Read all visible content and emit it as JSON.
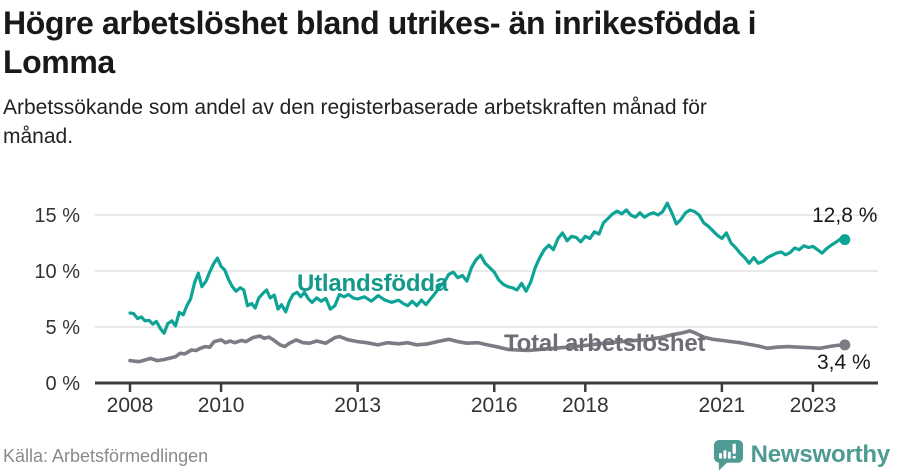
{
  "header": {
    "title_lines": [
      "Högre arbetslöshet bland utrikes- än inrikesfödda i",
      "Lomma"
    ],
    "subtitle_lines": [
      "Arbetssökande som andel av den registerbaserade arbetskraften månad för",
      "månad."
    ]
  },
  "chart_data": {
    "type": "line",
    "x_unit": "year_decimal",
    "xlim": [
      2007.75,
      2024.1
    ],
    "ylim": [
      0,
      16.5
    ],
    "grid": "horizontal",
    "yticks": [
      0,
      5,
      10,
      15
    ],
    "ytick_labels": [
      "0 %",
      "5 %",
      "10 %",
      "15 %"
    ],
    "xticks": [
      2008,
      2010,
      2013,
      2016,
      2018,
      2021,
      2023
    ],
    "xtick_labels": [
      "2008",
      "2010",
      "2013",
      "2016",
      "2018",
      "2021",
      "2023"
    ],
    "series": [
      {
        "name": "Utlandsfödda",
        "color": "#0da495",
        "label_color": "#12998c",
        "end_label": "12,8 %",
        "end_value": 12.8,
        "points": [
          [
            2008.0,
            6.25
          ],
          [
            2008.08,
            6.2
          ],
          [
            2008.17,
            5.75
          ],
          [
            2008.25,
            5.9
          ],
          [
            2008.33,
            5.55
          ],
          [
            2008.42,
            5.6
          ],
          [
            2008.5,
            5.25
          ],
          [
            2008.58,
            5.5
          ],
          [
            2008.67,
            4.85
          ],
          [
            2008.75,
            4.45
          ],
          [
            2008.83,
            5.3
          ],
          [
            2008.92,
            5.55
          ],
          [
            2009.0,
            5.1
          ],
          [
            2009.08,
            6.3
          ],
          [
            2009.17,
            6.1
          ],
          [
            2009.25,
            6.9
          ],
          [
            2009.33,
            7.5
          ],
          [
            2009.42,
            9.0
          ],
          [
            2009.5,
            9.8
          ],
          [
            2009.58,
            8.6
          ],
          [
            2009.67,
            9.1
          ],
          [
            2009.75,
            9.9
          ],
          [
            2009.83,
            10.6
          ],
          [
            2009.92,
            11.15
          ],
          [
            2010.0,
            10.4
          ],
          [
            2010.08,
            10.1
          ],
          [
            2010.17,
            9.2
          ],
          [
            2010.25,
            8.6
          ],
          [
            2010.33,
            8.2
          ],
          [
            2010.42,
            8.5
          ],
          [
            2010.5,
            8.3
          ],
          [
            2010.58,
            6.9
          ],
          [
            2010.67,
            7.1
          ],
          [
            2010.75,
            6.7
          ],
          [
            2010.83,
            7.6
          ],
          [
            2010.92,
            8.0
          ],
          [
            2011.0,
            8.3
          ],
          [
            2011.08,
            7.6
          ],
          [
            2011.17,
            7.85
          ],
          [
            2011.25,
            6.6
          ],
          [
            2011.33,
            7.0
          ],
          [
            2011.42,
            6.35
          ],
          [
            2011.5,
            7.3
          ],
          [
            2011.58,
            7.9
          ],
          [
            2011.67,
            8.1
          ],
          [
            2011.75,
            7.7
          ],
          [
            2011.83,
            8.1
          ],
          [
            2011.92,
            7.5
          ],
          [
            2012.0,
            7.2
          ],
          [
            2012.1,
            7.6
          ],
          [
            2012.2,
            7.3
          ],
          [
            2012.3,
            7.55
          ],
          [
            2012.4,
            6.6
          ],
          [
            2012.5,
            6.9
          ],
          [
            2012.6,
            7.9
          ],
          [
            2012.7,
            7.7
          ],
          [
            2012.8,
            7.9
          ],
          [
            2012.9,
            7.6
          ],
          [
            2013.0,
            7.5
          ],
          [
            2013.15,
            7.7
          ],
          [
            2013.3,
            7.3
          ],
          [
            2013.45,
            7.8
          ],
          [
            2013.6,
            7.4
          ],
          [
            2013.75,
            7.2
          ],
          [
            2013.9,
            7.4
          ],
          [
            2014.0,
            7.1
          ],
          [
            2014.1,
            6.9
          ],
          [
            2014.2,
            7.3
          ],
          [
            2014.3,
            6.9
          ],
          [
            2014.4,
            7.4
          ],
          [
            2014.5,
            7.0
          ],
          [
            2014.6,
            7.5
          ],
          [
            2014.7,
            8.0
          ],
          [
            2014.8,
            8.6
          ],
          [
            2014.9,
            9.0
          ],
          [
            2015.0,
            9.7
          ],
          [
            2015.1,
            9.9
          ],
          [
            2015.2,
            9.4
          ],
          [
            2015.3,
            9.6
          ],
          [
            2015.4,
            9.1
          ],
          [
            2015.5,
            10.3
          ],
          [
            2015.6,
            11.0
          ],
          [
            2015.7,
            11.4
          ],
          [
            2015.8,
            10.7
          ],
          [
            2015.9,
            10.3
          ],
          [
            2016.0,
            9.9
          ],
          [
            2016.1,
            9.2
          ],
          [
            2016.2,
            8.8
          ],
          [
            2016.3,
            8.6
          ],
          [
            2016.4,
            8.5
          ],
          [
            2016.5,
            8.3
          ],
          [
            2016.6,
            8.9
          ],
          [
            2016.7,
            8.2
          ],
          [
            2016.8,
            9.0
          ],
          [
            2016.9,
            10.3
          ],
          [
            2017.0,
            11.2
          ],
          [
            2017.1,
            11.9
          ],
          [
            2017.2,
            12.3
          ],
          [
            2017.3,
            11.9
          ],
          [
            2017.4,
            12.9
          ],
          [
            2017.5,
            13.4
          ],
          [
            2017.6,
            12.7
          ],
          [
            2017.7,
            13.1
          ],
          [
            2017.8,
            13.0
          ],
          [
            2017.9,
            12.6
          ],
          [
            2018.0,
            13.1
          ],
          [
            2018.1,
            12.9
          ],
          [
            2018.2,
            13.5
          ],
          [
            2018.3,
            13.3
          ],
          [
            2018.4,
            14.3
          ],
          [
            2018.5,
            14.7
          ],
          [
            2018.6,
            15.1
          ],
          [
            2018.7,
            15.35
          ],
          [
            2018.8,
            15.1
          ],
          [
            2018.9,
            15.45
          ],
          [
            2019.0,
            15.0
          ],
          [
            2019.1,
            14.8
          ],
          [
            2019.2,
            15.2
          ],
          [
            2019.3,
            14.8
          ],
          [
            2019.4,
            15.05
          ],
          [
            2019.5,
            15.2
          ],
          [
            2019.6,
            15.0
          ],
          [
            2019.7,
            15.3
          ],
          [
            2019.8,
            16.05
          ],
          [
            2019.9,
            15.2
          ],
          [
            2020.0,
            14.2
          ],
          [
            2020.1,
            14.6
          ],
          [
            2020.2,
            15.2
          ],
          [
            2020.3,
            15.45
          ],
          [
            2020.4,
            15.3
          ],
          [
            2020.5,
            15.0
          ],
          [
            2020.6,
            14.3
          ],
          [
            2020.7,
            14.0
          ],
          [
            2020.8,
            13.6
          ],
          [
            2020.9,
            13.2
          ],
          [
            2021.0,
            12.9
          ],
          [
            2021.1,
            13.4
          ],
          [
            2021.2,
            12.5
          ],
          [
            2021.3,
            12.1
          ],
          [
            2021.4,
            11.6
          ],
          [
            2021.5,
            11.2
          ],
          [
            2021.6,
            10.7
          ],
          [
            2021.7,
            11.2
          ],
          [
            2021.8,
            10.7
          ],
          [
            2021.9,
            10.85
          ],
          [
            2022.0,
            11.2
          ],
          [
            2022.1,
            11.4
          ],
          [
            2022.2,
            11.6
          ],
          [
            2022.3,
            11.7
          ],
          [
            2022.4,
            11.45
          ],
          [
            2022.5,
            11.65
          ],
          [
            2022.6,
            12.05
          ],
          [
            2022.7,
            11.9
          ],
          [
            2022.8,
            12.25
          ],
          [
            2022.9,
            12.1
          ],
          [
            2023.0,
            12.2
          ],
          [
            2023.1,
            11.9
          ],
          [
            2023.2,
            11.6
          ],
          [
            2023.3,
            12.0
          ],
          [
            2023.4,
            12.3
          ],
          [
            2023.5,
            12.55
          ],
          [
            2023.6,
            12.85
          ],
          [
            2023.7,
            12.8
          ]
        ]
      },
      {
        "name": "Total arbetslöshet",
        "color": "#7c7c84",
        "label_color": "#6d6d75",
        "end_label": "3,4 %",
        "end_value": 3.4,
        "points": [
          [
            2008.0,
            2.0
          ],
          [
            2008.2,
            1.9
          ],
          [
            2008.45,
            2.2
          ],
          [
            2008.6,
            2.0
          ],
          [
            2008.75,
            2.1
          ],
          [
            2009.0,
            2.35
          ],
          [
            2009.1,
            2.65
          ],
          [
            2009.2,
            2.6
          ],
          [
            2009.35,
            2.95
          ],
          [
            2009.45,
            2.9
          ],
          [
            2009.55,
            3.1
          ],
          [
            2009.65,
            3.25
          ],
          [
            2009.75,
            3.2
          ],
          [
            2009.85,
            3.7
          ],
          [
            2010.0,
            3.85
          ],
          [
            2010.1,
            3.6
          ],
          [
            2010.2,
            3.75
          ],
          [
            2010.3,
            3.6
          ],
          [
            2010.45,
            3.8
          ],
          [
            2010.55,
            3.7
          ],
          [
            2010.7,
            4.05
          ],
          [
            2010.85,
            4.2
          ],
          [
            2010.95,
            4.0
          ],
          [
            2011.05,
            4.1
          ],
          [
            2011.15,
            3.85
          ],
          [
            2011.3,
            3.4
          ],
          [
            2011.4,
            3.25
          ],
          [
            2011.5,
            3.55
          ],
          [
            2011.65,
            3.85
          ],
          [
            2011.8,
            3.6
          ],
          [
            2011.95,
            3.55
          ],
          [
            2012.1,
            3.75
          ],
          [
            2012.3,
            3.55
          ],
          [
            2012.5,
            4.05
          ],
          [
            2012.6,
            4.15
          ],
          [
            2012.8,
            3.85
          ],
          [
            2013.0,
            3.7
          ],
          [
            2013.2,
            3.6
          ],
          [
            2013.45,
            3.4
          ],
          [
            2013.65,
            3.6
          ],
          [
            2013.9,
            3.5
          ],
          [
            2014.1,
            3.6
          ],
          [
            2014.3,
            3.4
          ],
          [
            2014.55,
            3.5
          ],
          [
            2014.75,
            3.7
          ],
          [
            2015.0,
            3.9
          ],
          [
            2015.2,
            3.7
          ],
          [
            2015.4,
            3.55
          ],
          [
            2015.65,
            3.6
          ],
          [
            2015.85,
            3.4
          ],
          [
            2016.1,
            3.2
          ],
          [
            2016.3,
            3.0
          ],
          [
            2016.5,
            2.95
          ],
          [
            2016.75,
            2.9
          ],
          [
            2017.0,
            3.0
          ],
          [
            2017.3,
            3.1
          ],
          [
            2017.6,
            3.2
          ],
          [
            2017.9,
            3.3
          ],
          [
            2018.2,
            3.45
          ],
          [
            2018.5,
            3.6
          ],
          [
            2018.8,
            3.7
          ],
          [
            2019.1,
            3.8
          ],
          [
            2019.4,
            3.9
          ],
          [
            2019.7,
            4.1
          ],
          [
            2019.9,
            4.3
          ],
          [
            2020.1,
            4.45
          ],
          [
            2020.3,
            4.65
          ],
          [
            2020.45,
            4.4
          ],
          [
            2020.6,
            4.1
          ],
          [
            2020.8,
            3.9
          ],
          [
            2021.0,
            3.8
          ],
          [
            2021.2,
            3.7
          ],
          [
            2021.4,
            3.6
          ],
          [
            2021.6,
            3.45
          ],
          [
            2021.8,
            3.3
          ],
          [
            2022.0,
            3.1
          ],
          [
            2022.2,
            3.2
          ],
          [
            2022.45,
            3.25
          ],
          [
            2022.7,
            3.2
          ],
          [
            2022.95,
            3.15
          ],
          [
            2023.15,
            3.1
          ],
          [
            2023.35,
            3.25
          ],
          [
            2023.5,
            3.35
          ],
          [
            2023.7,
            3.4
          ]
        ]
      }
    ]
  },
  "footer": {
    "source": "Källa: Arbetsförmedlingen",
    "brand": "Newsworthy"
  },
  "colors": {
    "accent_teal": "#0da495",
    "line_gray": "#7c7c84",
    "grid": "#dcdcdc",
    "axis": "#3b3b3b",
    "tick_text": "#333333",
    "brand_teal": "#4e9b94"
  }
}
